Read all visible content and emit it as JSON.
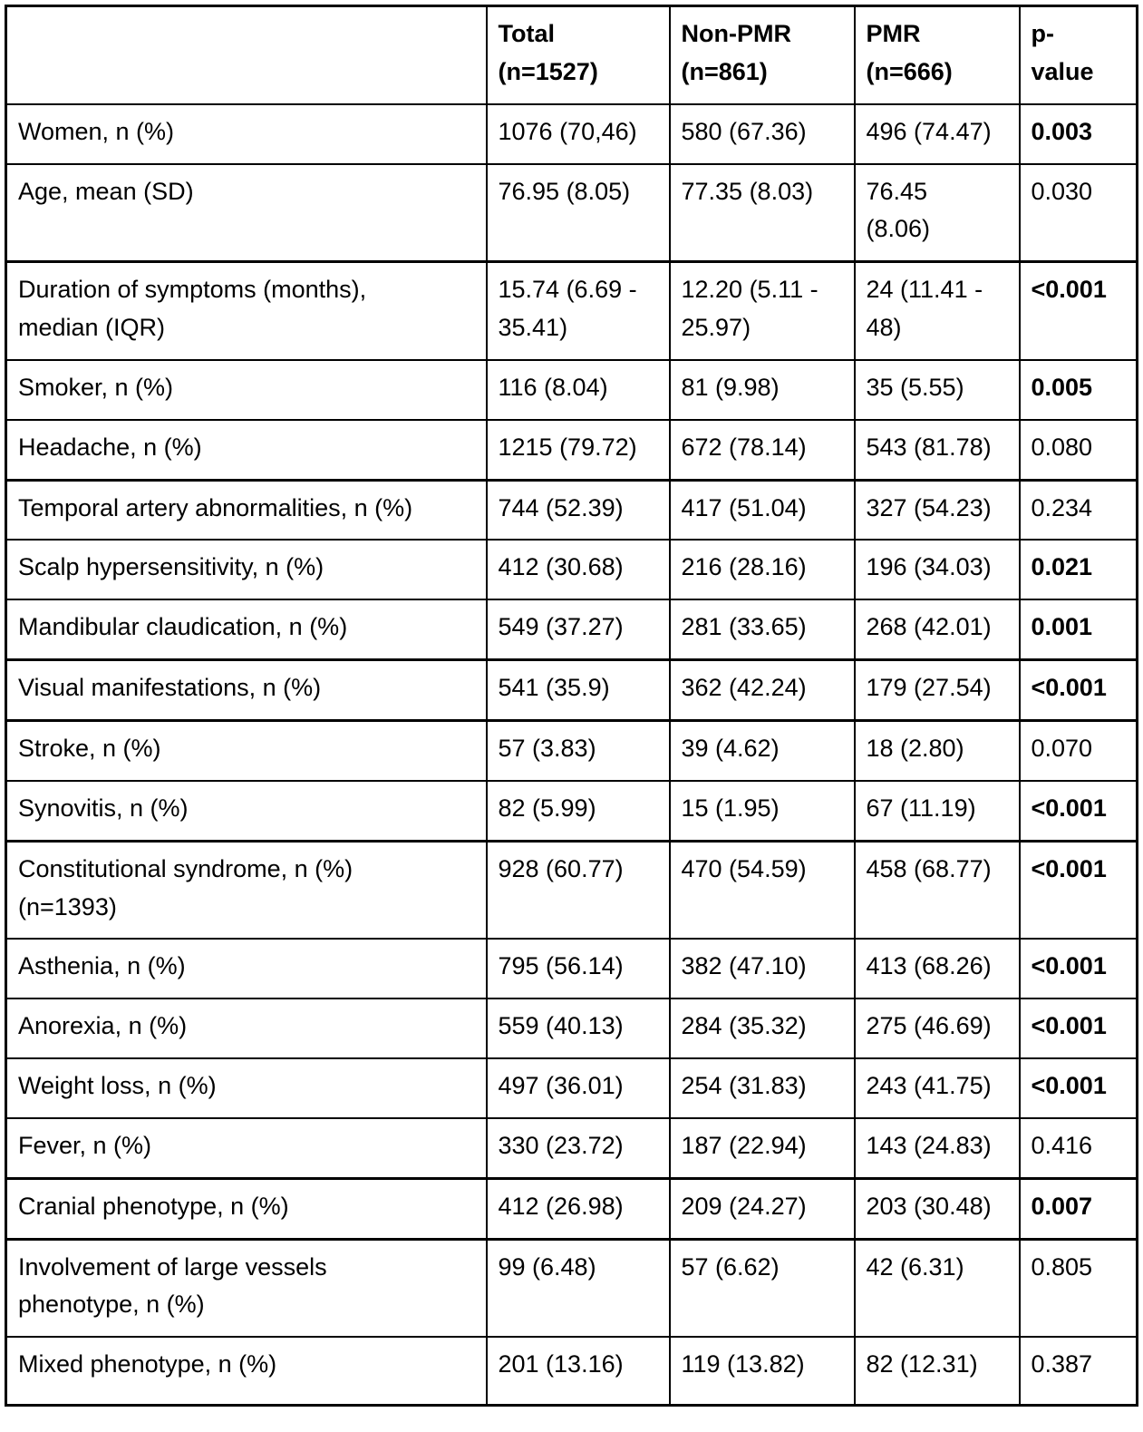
{
  "table": {
    "columns": [
      {
        "label": ""
      },
      {
        "label": "Total\n(n=1527)"
      },
      {
        "label": "Non-PMR\n(n=861)"
      },
      {
        "label": "PMR\n(n=666)"
      },
      {
        "label": "p-\nvalue"
      }
    ],
    "rows": [
      {
        "label": "Women, n (%)",
        "total": "1076 (70,46)",
        "non_pmr": "580 (67.36)",
        "pmr": "496 (74.47)",
        "p": "0.003",
        "p_bold": true
      },
      {
        "label": "Age, mean (SD)",
        "total": "76.95 (8.05)",
        "non_pmr": "77.35 (8.03)",
        "pmr": "76.45\n(8.06)",
        "p": "0.030",
        "p_bold": false
      },
      {
        "label": "Duration of symptoms (months),\nmedian (IQR)",
        "total": "15.74 (6.69 -\n35.41)",
        "non_pmr": "12.20 (5.11 -\n25.97)",
        "pmr": "24 (11.41 -\n48)",
        "p": "<0.001",
        "p_bold": true
      },
      {
        "label": "Smoker, n (%)",
        "total": "116 (8.04)",
        "non_pmr": "81 (9.98)",
        "pmr": "35 (5.55)",
        "p": "0.005",
        "p_bold": true
      },
      {
        "label": "Headache, n (%)",
        "total": "1215 (79.72)",
        "non_pmr": "672 (78.14)",
        "pmr": "543 (81.78)",
        "p": "0.080",
        "p_bold": false
      },
      {
        "label": "Temporal artery abnormalities, n (%)",
        "total": "744 (52.39)",
        "non_pmr": "417 (51.04)",
        "pmr": "327 (54.23)",
        "p": "0.234",
        "p_bold": false
      },
      {
        "label": "Scalp hypersensitivity, n (%)",
        "total": "412 (30.68)",
        "non_pmr": "216 (28.16)",
        "pmr": "196 (34.03)",
        "p": "0.021",
        "p_bold": true
      },
      {
        "label": "Mandibular claudication, n (%)",
        "total": "549 (37.27)",
        "non_pmr": "281 (33.65)",
        "pmr": "268 (42.01)",
        "p": "0.001",
        "p_bold": true
      },
      {
        "label": "Visual manifestations, n (%)",
        "total": "541 (35.9)",
        "non_pmr": "362 (42.24)",
        "pmr": "179 (27.54)",
        "p": "<0.001",
        "p_bold": true
      },
      {
        "label": "Stroke, n (%)",
        "total": "57 (3.83)",
        "non_pmr": "39 (4.62)",
        "pmr": "18 (2.80)",
        "p": "0.070",
        "p_bold": false
      },
      {
        "label": "Synovitis, n (%)",
        "total": "82 (5.99)",
        "non_pmr": "15 (1.95)",
        "pmr": "67 (11.19)",
        "p": "<0.001",
        "p_bold": true
      },
      {
        "label": "Constitutional syndrome, n (%)\n(n=1393)",
        "total": "928 (60.77)",
        "non_pmr": "470 (54.59)",
        "pmr": "458 (68.77)",
        "p": "<0.001",
        "p_bold": true
      },
      {
        "label": "Asthenia, n (%)",
        "total": "795 (56.14)",
        "non_pmr": "382 (47.10)",
        "pmr": "413 (68.26)",
        "p": "<0.001",
        "p_bold": true
      },
      {
        "label": "Anorexia, n (%)",
        "total": "559 (40.13)",
        "non_pmr": "284 (35.32)",
        "pmr": "275 (46.69)",
        "p": "<0.001",
        "p_bold": true
      },
      {
        "label": "Weight loss, n (%)",
        "total": "497 (36.01)",
        "non_pmr": "254 (31.83)",
        "pmr": "243 (41.75)",
        "p": "<0.001",
        "p_bold": true
      },
      {
        "label": "Fever, n (%)",
        "total": "330 (23.72)",
        "non_pmr": "187 (22.94)",
        "pmr": "143 (24.83)",
        "p": "0.416",
        "p_bold": false
      },
      {
        "label": "Cranial phenotype, n (%)",
        "total": "412 (26.98)",
        "non_pmr": "209 (24.27)",
        "pmr": "203 (30.48)",
        "p": "0.007",
        "p_bold": true
      },
      {
        "label": "Involvement of large vessels\nphenotype, n (%)",
        "total": "99 (6.48)",
        "non_pmr": "57 (6.62)",
        "pmr": "42 (6.31)",
        "p": "0.805",
        "p_bold": false
      },
      {
        "label": "Mixed phenotype, n (%)",
        "total": "201 (13.16)",
        "non_pmr": "119 (13.82)",
        "pmr": "82 (12.31)",
        "p": "0.387",
        "p_bold": false
      }
    ]
  }
}
